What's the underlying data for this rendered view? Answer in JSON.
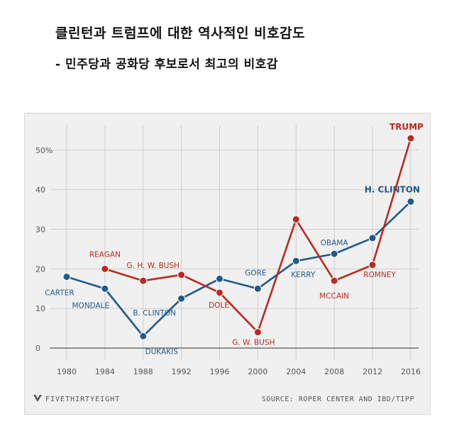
{
  "header": {
    "title": "클린턴과 트럼프에 대한 역사적인 비호감도",
    "subtitle": "- 민주당과 공화당 후보로서 최고의 비호감"
  },
  "footer": {
    "brand": "FIVETHIRTYEIGHT",
    "source": "SOURCE: ROPER CENTER AND IBD/TIPP"
  },
  "colors": {
    "democrat": "#1f5a8c",
    "republican": "#b82b1e",
    "democrat_label": "#1f5a8c",
    "republican_label": "#b82b1e"
  },
  "chart_data": {
    "type": "line",
    "x": [
      1980,
      1984,
      1988,
      1992,
      1996,
      2000,
      2004,
      2008,
      2012,
      2016
    ],
    "xticks": [
      "1980",
      "1984",
      "1988",
      "1992",
      "1996",
      "2000",
      "2004",
      "2008",
      "2012",
      "2016"
    ],
    "ylim": [
      0,
      55
    ],
    "yticks": [
      "0",
      "10",
      "20",
      "30",
      "40",
      "50%"
    ],
    "ytick_values": [
      0,
      10,
      20,
      30,
      40,
      50
    ],
    "grid": true,
    "series": [
      {
        "key": "democrat",
        "values": [
          18,
          15,
          3,
          12.5,
          17.5,
          15,
          22,
          23.8,
          27.8,
          37
        ],
        "labels": [
          "CARTER",
          "MONDALE",
          "DUKAKIS",
          "B. CLINTON",
          "",
          "GORE",
          "KERRY",
          "OBAMA",
          "",
          "H. CLINTON"
        ]
      },
      {
        "key": "republican",
        "values": [
          null,
          20,
          17,
          18.5,
          14,
          4,
          32.5,
          17,
          21,
          53
        ],
        "labels": [
          "",
          "REAGAN",
          "G. H. W. BUSH",
          "",
          "DOLE",
          "G. W. BUSH",
          "",
          "MCCAIN",
          "ROMNEY",
          "TRUMP"
        ]
      }
    ]
  }
}
